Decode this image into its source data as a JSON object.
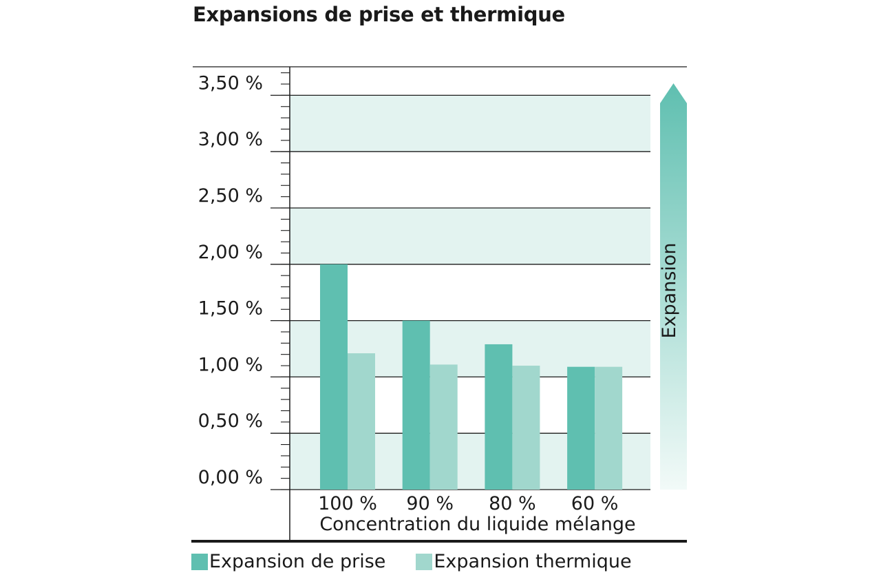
{
  "chart_data": {
    "type": "bar",
    "title": "Expansions de prise et thermique",
    "xlabel": "Concentration du liquide mélange",
    "ylabel": "",
    "categories": [
      "100 %",
      "90 %",
      "80 %",
      "60 %"
    ],
    "series": [
      {
        "name": "Expansion de prise",
        "values": [
          2.0,
          1.5,
          1.29,
          1.09
        ],
        "color": "#5fbfb0"
      },
      {
        "name": "Expansion thermique",
        "values": [
          1.21,
          1.11,
          1.1,
          1.09
        ],
        "color": "#a1d7cd"
      }
    ],
    "ylim": [
      0,
      3.75
    ],
    "yticks": [
      {
        "value": 0.0,
        "label": "0,00 %"
      },
      {
        "value": 0.5,
        "label": "0,50 %"
      },
      {
        "value": 1.0,
        "label": "1,00 %"
      },
      {
        "value": 1.5,
        "label": "1,50 %"
      },
      {
        "value": 2.0,
        "label": "2,00 %"
      },
      {
        "value": 2.5,
        "label": "2,50 %"
      },
      {
        "value": 3.0,
        "label": "3,00 %"
      },
      {
        "value": 3.5,
        "label": "3,50 %"
      }
    ],
    "minor_tick_step": 0.1,
    "band_color": "#e3f3f0",
    "grid": true,
    "side_arrow_label": "Expansion",
    "side_arrow_color": "#5fbfb0",
    "legend_position": "bottom-left"
  }
}
